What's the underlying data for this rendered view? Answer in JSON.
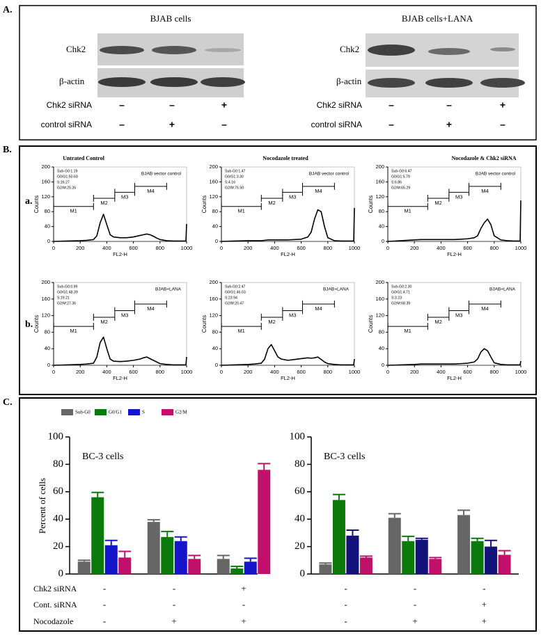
{
  "panel_a": {
    "label": "A.",
    "blots": [
      {
        "title": "BJAB cells",
        "rows": [
          "Chk2",
          "β-actin"
        ],
        "conditions": [
          {
            "label": "Chk2 siRNA",
            "signs": [
              "–",
              "–",
              "+"
            ]
          },
          {
            "label": "control siRNA",
            "signs": [
              "–",
              "+",
              "–"
            ]
          }
        ]
      },
      {
        "title": "BJAB cells+LANA",
        "rows": [
          "Chk2",
          "β-actin"
        ],
        "conditions": [
          {
            "label": "Chk2 siRNA",
            "signs": [
              "–",
              "–",
              "+"
            ]
          },
          {
            "label": "control siRNA",
            "signs": [
              "–",
              "+",
              "–"
            ]
          }
        ]
      }
    ]
  },
  "panel_b": {
    "label": "B.",
    "row_labels": [
      "a.",
      "b."
    ],
    "column_titles": [
      "Untrated Control",
      "Nocodazole treated",
      "Nocodazole & Chk2 siRNA"
    ],
    "histograms": [
      {
        "type": "line",
        "xlabel": "FL2-H",
        "ylabel": "Counts",
        "annotation": "BJAB vector control",
        "color": "#000",
        "stats": [
          "Sub-G0:1.19",
          "G0/G1:50.60",
          "S:16.27",
          "G2/M:25.26"
        ],
        "x": [
          0,
          100,
          200,
          250,
          300,
          325,
          350,
          375,
          400,
          425,
          450,
          500,
          550,
          600,
          650,
          675,
          700,
          725,
          750,
          775,
          800,
          850,
          900,
          950,
          995,
          1000
        ],
        "values": [
          0,
          1,
          2,
          3,
          5,
          15,
          50,
          73,
          45,
          18,
          12,
          10,
          10,
          12,
          16,
          18,
          20,
          18,
          14,
          9,
          5,
          2,
          1,
          1,
          1,
          47
        ],
        "xlim": [
          0,
          1000
        ],
        "ylim": [
          0,
          200
        ],
        "xticks": [
          0,
          200,
          400,
          600,
          800,
          1000
        ],
        "yticks": [
          0,
          40,
          80,
          120,
          160,
          200
        ],
        "gates": [
          {
            "label": "M1",
            "range": [
              0,
              300
            ]
          },
          {
            "label": "M2",
            "range": [
              300,
              460
            ]
          },
          {
            "label": "M3",
            "range": [
              460,
              610
            ]
          },
          {
            "label": "M4",
            "range": [
              610,
              850
            ]
          }
        ]
      },
      {
        "type": "line",
        "xlabel": "FL2-H",
        "ylabel": "Counts",
        "annotation": "BJAB vector control",
        "color": "#000",
        "stats": [
          "Sub-G0:1.47",
          "G0/G1:3.30",
          "S:4.16",
          "G2/M:75.50"
        ],
        "x": [
          0,
          100,
          200,
          250,
          300,
          325,
          350,
          375,
          400,
          425,
          450,
          500,
          550,
          600,
          650,
          675,
          700,
          725,
          750,
          775,
          800,
          850,
          900,
          950,
          995,
          1000
        ],
        "values": [
          0,
          1,
          2,
          2,
          2,
          3,
          4,
          4,
          4,
          4,
          4,
          4,
          5,
          6,
          12,
          25,
          60,
          85,
          80,
          40,
          10,
          2,
          1,
          1,
          1,
          90
        ],
        "xlim": [
          0,
          1000
        ],
        "ylim": [
          0,
          200
        ],
        "xticks": [
          0,
          200,
          400,
          600,
          800,
          1000
        ],
        "yticks": [
          0,
          40,
          80,
          120,
          160,
          200
        ],
        "gates": [
          {
            "label": "M1",
            "range": [
              0,
              300
            ]
          },
          {
            "label": "M2",
            "range": [
              300,
              460
            ]
          },
          {
            "label": "M3",
            "range": [
              460,
              610
            ]
          },
          {
            "label": "M4",
            "range": [
              610,
              850
            ]
          }
        ]
      },
      {
        "type": "line",
        "xlabel": "FL2-H",
        "ylabel": "Counts",
        "annotation": "BJAB vector control",
        "color": "#000",
        "stats": [
          "Sub-G0:6.47",
          "G0/G1:5.79",
          "S:6.86",
          "G2/M:65.29"
        ],
        "x": [
          0,
          100,
          200,
          250,
          300,
          325,
          350,
          375,
          400,
          425,
          450,
          500,
          550,
          600,
          650,
          675,
          700,
          725,
          750,
          775,
          800,
          850,
          900,
          950,
          995,
          1000
        ],
        "values": [
          0,
          2,
          4,
          5,
          5,
          5,
          5,
          5,
          5,
          5,
          5,
          5,
          6,
          7,
          10,
          15,
          35,
          50,
          60,
          45,
          15,
          4,
          2,
          1,
          1,
          110
        ],
        "xlim": [
          0,
          1000
        ],
        "ylim": [
          0,
          200
        ],
        "xticks": [
          0,
          200,
          400,
          600,
          800,
          1000
        ],
        "yticks": [
          0,
          40,
          80,
          120,
          160,
          200
        ],
        "gates": [
          {
            "label": "M1",
            "range": [
              0,
              300
            ]
          },
          {
            "label": "M2",
            "range": [
              300,
              460
            ]
          },
          {
            "label": "M3",
            "range": [
              460,
              610
            ]
          },
          {
            "label": "M4",
            "range": [
              610,
              850
            ]
          }
        ]
      },
      {
        "type": "line",
        "xlabel": "FL2-H",
        "ylabel": "Counts",
        "annotation": "BJAB+LANA",
        "color": "#000",
        "stats": [
          "Sub-G0:0.99",
          "G0/G1:48.39",
          "S:19.21",
          "G2/M:27.36"
        ],
        "x": [
          0,
          100,
          200,
          250,
          300,
          325,
          350,
          375,
          400,
          425,
          450,
          500,
          550,
          600,
          650,
          675,
          700,
          725,
          750,
          775,
          800,
          850,
          900,
          950,
          995,
          1000
        ],
        "values": [
          0,
          1,
          2,
          3,
          5,
          20,
          55,
          68,
          40,
          15,
          10,
          9,
          10,
          12,
          15,
          18,
          20,
          16,
          12,
          8,
          4,
          2,
          1,
          1,
          1,
          20
        ],
        "xlim": [
          0,
          1000
        ],
        "ylim": [
          0,
          200
        ],
        "xticks": [
          0,
          200,
          400,
          600,
          800,
          1000
        ],
        "yticks": [
          0,
          40,
          80,
          120,
          160,
          200
        ],
        "gates": [
          {
            "label": "M1",
            "range": [
              0,
              300
            ]
          },
          {
            "label": "M2",
            "range": [
              300,
              460
            ]
          },
          {
            "label": "M3",
            "range": [
              460,
              610
            ]
          },
          {
            "label": "M4",
            "range": [
              610,
              850
            ]
          }
        ]
      },
      {
        "type": "line",
        "xlabel": "FL2-H",
        "ylabel": "Counts",
        "annotation": "BJAB+LANA",
        "color": "#000",
        "stats": [
          "Sub-G0:2.47",
          "G0/G1:46.03",
          "S:23.94",
          "G2/M:20.47"
        ],
        "x": [
          0,
          100,
          200,
          250,
          300,
          325,
          350,
          375,
          400,
          425,
          450,
          500,
          550,
          600,
          650,
          675,
          700,
          725,
          750,
          775,
          800,
          850,
          900,
          950,
          995,
          1000
        ],
        "values": [
          0,
          1,
          2,
          3,
          5,
          15,
          40,
          50,
          35,
          20,
          15,
          12,
          14,
          16,
          18,
          17,
          18,
          20,
          14,
          8,
          4,
          2,
          1,
          1,
          1,
          15
        ],
        "xlim": [
          0,
          1000
        ],
        "ylim": [
          0,
          200
        ],
        "xticks": [
          0,
          200,
          400,
          600,
          800,
          1000
        ],
        "yticks": [
          0,
          40,
          80,
          120,
          160,
          200
        ],
        "gates": [
          {
            "label": "M1",
            "range": [
              0,
              300
            ]
          },
          {
            "label": "M2",
            "range": [
              300,
              460
            ]
          },
          {
            "label": "M3",
            "range": [
              460,
              610
            ]
          },
          {
            "label": "M4",
            "range": [
              610,
              850
            ]
          }
        ]
      },
      {
        "type": "line",
        "xlabel": "FL2-H",
        "ylabel": "Counts",
        "annotation": "BJAB+LANA",
        "color": "#000",
        "stats": [
          "Sub-G0:2.30",
          "G0/G1:4.71",
          "S:3.23",
          "G2/M:68.39"
        ],
        "x": [
          0,
          100,
          200,
          250,
          300,
          325,
          350,
          375,
          400,
          425,
          450,
          500,
          550,
          600,
          650,
          675,
          700,
          725,
          750,
          775,
          800,
          850,
          900,
          950,
          995,
          1000
        ],
        "values": [
          0,
          1,
          2,
          3,
          3,
          3,
          3,
          3,
          3,
          3,
          3,
          3,
          4,
          5,
          8,
          15,
          32,
          40,
          35,
          20,
          6,
          2,
          1,
          1,
          1,
          10
        ],
        "xlim": [
          0,
          1000
        ],
        "ylim": [
          0,
          200
        ],
        "xticks": [
          0,
          200,
          400,
          600,
          800,
          1000
        ],
        "yticks": [
          0,
          40,
          80,
          120,
          160,
          200
        ],
        "gates": [
          {
            "label": "M1",
            "range": [
              0,
              300
            ]
          },
          {
            "label": "M2",
            "range": [
              300,
              460
            ]
          },
          {
            "label": "M3",
            "range": [
              460,
              610
            ]
          },
          {
            "label": "M4",
            "range": [
              610,
              850
            ]
          }
        ]
      }
    ]
  },
  "panel_c": {
    "label": "C.",
    "condition_labels": [
      "Chk2 siRNA",
      "Cont. siRNA",
      "Nocodazole"
    ]
  },
  "chart_data": [
    {
      "type": "bar",
      "title": "BC-3 cells",
      "ylabel": "Percent of cells",
      "ylim": [
        0,
        100
      ],
      "yticks": [
        0,
        20,
        40,
        60,
        80,
        100
      ],
      "condition_signs": [
        [
          "-",
          "-",
          "+"
        ],
        [
          "-",
          "-",
          "-"
        ],
        [
          "-",
          "+",
          "+"
        ]
      ],
      "series": [
        {
          "name": "Sub-G0",
          "color": "#666666",
          "values": [
            9,
            38,
            11
          ],
          "errors": [
            1,
            1.5,
            2.5
          ]
        },
        {
          "name": "G0/G1",
          "color": "#0b7a0b",
          "values": [
            56,
            27,
            4
          ],
          "errors": [
            3.5,
            4,
            1.5
          ]
        },
        {
          "name": "S",
          "color": "#1414c8",
          "values": [
            21,
            24,
            9
          ],
          "errors": [
            3.5,
            3,
            2.5
          ]
        },
        {
          "name": "G2/M",
          "color": "#c0106a",
          "values": [
            12,
            11,
            76
          ],
          "errors": [
            4.5,
            2.5,
            4.5
          ]
        }
      ]
    },
    {
      "type": "bar",
      "title": "BC-3 cells",
      "ylim": [
        0,
        100
      ],
      "yticks": [
        0,
        20,
        40,
        60,
        80,
        100
      ],
      "condition_signs": [
        [
          "-",
          "-",
          "-"
        ],
        [
          "-",
          "-",
          "+"
        ],
        [
          "-",
          "+",
          "+"
        ]
      ],
      "series": [
        {
          "color": "#666666",
          "values": [
            7,
            41,
            43
          ],
          "errors": [
            1,
            3,
            3.5
          ]
        },
        {
          "color": "#0b7a0b",
          "values": [
            54,
            24,
            24
          ],
          "errors": [
            4,
            3.5,
            2
          ]
        },
        {
          "color": "#12127a",
          "values": [
            28,
            25,
            20
          ],
          "errors": [
            4,
            1,
            4.5
          ]
        },
        {
          "color": "#c0106a",
          "values": [
            12,
            11,
            14
          ],
          "errors": [
            1,
            1,
            3
          ]
        }
      ]
    }
  ]
}
